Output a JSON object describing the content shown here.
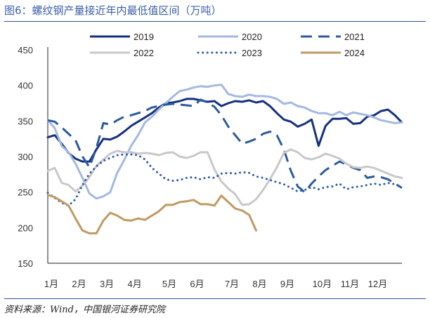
{
  "title": "图6：螺纹钢产量接近年内最低值区间（万吨）",
  "source": "资料来源：Wind，中国银河证券研究院",
  "chart_data": {
    "type": "line",
    "title": "图6：螺纹钢产量接近年内最低值区间（万吨）",
    "xlabel": "",
    "ylabel": "",
    "unit": "万吨",
    "ylim": [
      150,
      450
    ],
    "yticks": [
      150,
      200,
      250,
      300,
      350,
      400,
      450
    ],
    "xlim": [
      1,
      52
    ],
    "xticks": [
      {
        "label": "1月",
        "week": 1
      },
      {
        "label": "2月",
        "week": 5
      },
      {
        "label": "3月",
        "week": 9
      },
      {
        "label": "4月",
        "week": 13
      },
      {
        "label": "5月",
        "week": 18
      },
      {
        "label": "6月",
        "week": 22
      },
      {
        "label": "7月",
        "week": 27
      },
      {
        "label": "8月",
        "week": 31
      },
      {
        "label": "9月",
        "week": 35
      },
      {
        "label": "10月",
        "week": 40
      },
      {
        "label": "11月",
        "week": 44
      },
      {
        "label": "12月",
        "week": 48
      }
    ],
    "grid": false,
    "legend_position": "top",
    "series": [
      {
        "name": "2019",
        "color": "#14317f",
        "dash": "solid",
        "width": 3,
        "x": [
          1,
          2,
          3,
          4,
          5,
          6,
          7,
          8,
          9,
          10,
          11,
          12,
          13,
          14,
          15,
          16,
          17,
          18,
          19,
          20,
          21,
          22,
          23,
          24,
          25,
          26,
          27,
          28,
          29,
          30,
          31,
          32,
          33,
          34,
          35,
          36,
          37,
          38,
          39,
          40,
          41,
          42,
          43,
          44,
          45,
          46,
          47,
          48,
          49,
          50,
          51,
          52
        ],
        "y": [
          327,
          330,
          318,
          305,
          297,
          293,
          293,
          310,
          325,
          324,
          328,
          335,
          343,
          349,
          355,
          361,
          369,
          375,
          376,
          378,
          381,
          381,
          379,
          377,
          378,
          371,
          375,
          378,
          377,
          379,
          376,
          378,
          371,
          361,
          352,
          349,
          342,
          346,
          352,
          315,
          343,
          353,
          353,
          354,
          346,
          347,
          356,
          358,
          364,
          366,
          358,
          348
        ]
      },
      {
        "name": "2020",
        "color": "#a3b9e1",
        "dash": "solid",
        "width": 3,
        "x": [
          1,
          2,
          3,
          4,
          5,
          6,
          7,
          8,
          9,
          10,
          11,
          12,
          13,
          14,
          15,
          16,
          17,
          18,
          19,
          20,
          21,
          22,
          23,
          24,
          25,
          26,
          27,
          28,
          29,
          30,
          31,
          32,
          33,
          34,
          35,
          36,
          37,
          38,
          39,
          40,
          41,
          42,
          43,
          44,
          45,
          46,
          47,
          48,
          49,
          50,
          51,
          52
        ],
        "y": [
          351,
          340,
          315,
          306,
          290,
          270,
          248,
          241,
          244,
          250,
          277,
          295,
          315,
          330,
          348,
          356,
          366,
          375,
          384,
          392,
          394,
          397,
          399,
          398,
          400,
          401,
          388,
          385,
          384,
          387,
          385,
          385,
          384,
          381,
          374,
          376,
          371,
          369,
          364,
          361,
          361,
          358,
          363,
          358,
          362,
          360,
          358,
          355,
          351,
          349,
          347,
          348
        ]
      },
      {
        "name": "2021",
        "color": "#2b5a9e",
        "dash": "longdash",
        "width": 3,
        "x": [
          1,
          2,
          3,
          4,
          5,
          6,
          7,
          8,
          9,
          10,
          11,
          12,
          13,
          14,
          15,
          16,
          17,
          18,
          19,
          20,
          21,
          22,
          23,
          24,
          25,
          26,
          27,
          28,
          29,
          30,
          31,
          32,
          33,
          34,
          35,
          36,
          37,
          38,
          39,
          40,
          41,
          42,
          43,
          44,
          45,
          46,
          47,
          48,
          49,
          50,
          51,
          52
        ],
        "y": [
          351,
          349,
          341,
          332,
          323,
          300,
          285,
          312,
          347,
          345,
          351,
          356,
          358,
          361,
          364,
          369,
          371,
          373,
          374,
          373,
          372,
          371,
          380,
          376,
          370,
          358,
          342,
          330,
          318,
          321,
          325,
          332,
          335,
          330,
          310,
          280,
          258,
          250,
          262,
          272,
          281,
          287,
          293,
          289,
          284,
          281,
          270,
          272,
          271,
          268,
          262,
          256
        ]
      },
      {
        "name": "2022",
        "color": "#c8c8c8",
        "dash": "solid",
        "width": 3,
        "x": [
          1,
          2,
          3,
          4,
          5,
          6,
          7,
          8,
          9,
          10,
          11,
          12,
          13,
          14,
          15,
          16,
          17,
          18,
          19,
          20,
          21,
          22,
          23,
          24,
          25,
          26,
          27,
          28,
          29,
          30,
          31,
          32,
          33,
          34,
          35,
          36,
          37,
          38,
          39,
          40,
          41,
          42,
          43,
          44,
          45,
          46,
          47,
          48,
          49,
          50,
          51,
          52
        ],
        "y": [
          280,
          284,
          263,
          260,
          251,
          259,
          271,
          287,
          296,
          304,
          308,
          306,
          306,
          304,
          305,
          304,
          302,
          305,
          306,
          300,
          298,
          301,
          306,
          306,
          282,
          265,
          255,
          247,
          232,
          233,
          240,
          253,
          268,
          285,
          305,
          310,
          306,
          298,
          296,
          299,
          304,
          301,
          297,
          290,
          285,
          284,
          286,
          284,
          280,
          276,
          272,
          270
        ]
      },
      {
        "name": "2023",
        "color": "#2f5eab",
        "dash": "dotted",
        "width": 3,
        "x": [
          1,
          2,
          3,
          4,
          5,
          6,
          7,
          8,
          9,
          10,
          11,
          12,
          13,
          14,
          15,
          16,
          17,
          18,
          19,
          20,
          21,
          22,
          23,
          24,
          25,
          26,
          27,
          28,
          29,
          30,
          31,
          32,
          33,
          34,
          35,
          36,
          37,
          38,
          39,
          40,
          41,
          42,
          43,
          44,
          45,
          46,
          47,
          48,
          49,
          50,
          51,
          52
        ],
        "y": [
          249,
          242,
          235,
          231,
          240,
          260,
          276,
          286,
          294,
          298,
          302,
          303,
          303,
          302,
          296,
          284,
          276,
          268,
          266,
          267,
          270,
          271,
          268,
          271,
          270,
          276,
          277,
          276,
          278,
          277,
          272,
          270,
          267,
          264,
          261,
          256,
          251,
          253,
          257,
          254,
          257,
          258,
          262,
          254,
          257,
          258,
          260,
          262,
          260,
          263,
          261,
          257
        ]
      },
      {
        "name": "2024",
        "color": "#bf9a62",
        "dash": "solid",
        "width": 3,
        "x": [
          1,
          2,
          3,
          4,
          5,
          6,
          7,
          8,
          9,
          10,
          11,
          12,
          13,
          14,
          15,
          16,
          17,
          18,
          19,
          20,
          21,
          22,
          23,
          24,
          25,
          26,
          27,
          28,
          29,
          30,
          31,
          32
        ],
        "y": [
          246,
          243,
          237,
          231,
          213,
          196,
          192,
          192,
          210,
          221,
          217,
          211,
          210,
          213,
          211,
          217,
          223,
          232,
          232,
          236,
          237,
          239,
          233,
          233,
          231,
          245,
          236,
          227,
          224,
          218,
          196,
          null
        ]
      }
    ]
  }
}
